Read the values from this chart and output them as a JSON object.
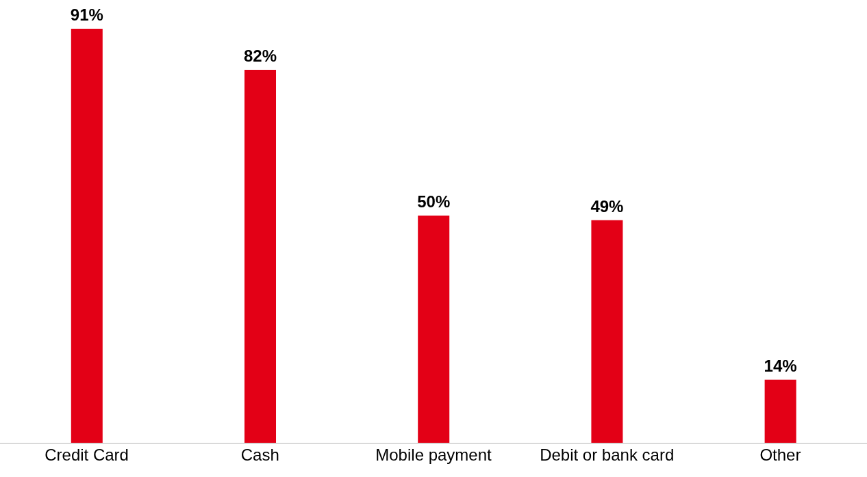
{
  "chart_data": {
    "type": "bar",
    "categories": [
      "Credit Card",
      "Cash",
      "Mobile payment",
      "Debit or bank card",
      "Other"
    ],
    "values": [
      91,
      82,
      50,
      49,
      14
    ],
    "color": "#e30016",
    "value_labels": [
      "91%",
      "82%",
      "50%",
      "49%",
      "14%"
    ],
    "grid": false,
    "legend": false
  }
}
